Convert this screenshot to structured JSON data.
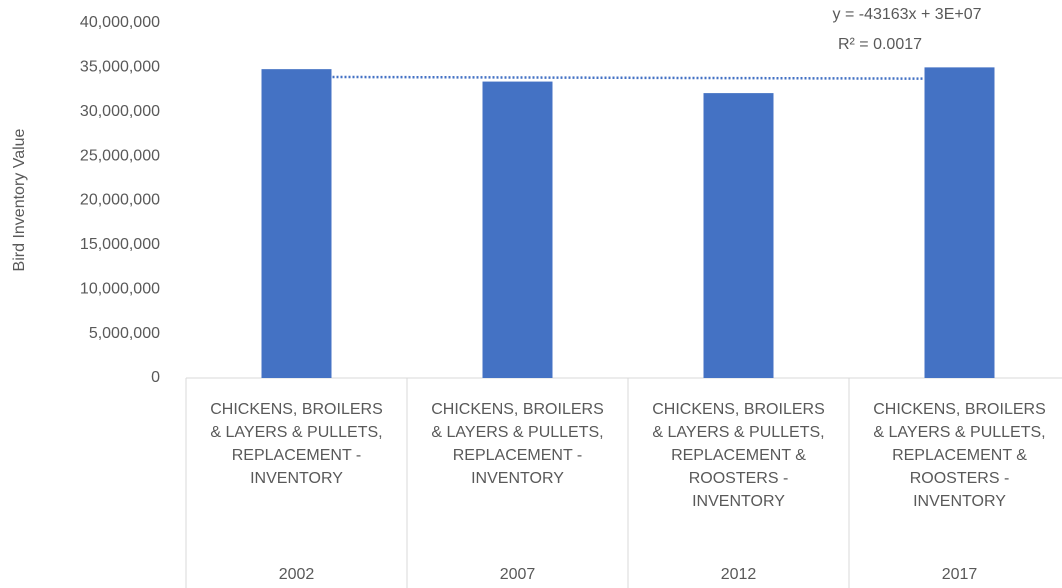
{
  "chart_data": {
    "type": "bar",
    "y_axis_label": "Bird Inventory Value",
    "categories": [
      "2002",
      "2007",
      "2012",
      "2017"
    ],
    "category_labels": [
      [
        "CHICKENS, BROILERS",
        "& LAYERS & PULLETS,",
        "REPLACEMENT -",
        "INVENTORY"
      ],
      [
        "CHICKENS, BROILERS",
        "& LAYERS & PULLETS,",
        "REPLACEMENT -",
        "INVENTORY"
      ],
      [
        "CHICKENS, BROILERS",
        "& LAYERS & PULLETS,",
        "REPLACEMENT &",
        "ROOSTERS -",
        "INVENTORY"
      ],
      [
        "CHICKENS, BROILERS",
        "& LAYERS & PULLETS,",
        "REPLACEMENT &",
        "ROOSTERS -",
        "INVENTORY"
      ]
    ],
    "values": [
      34800000,
      33400000,
      32100000,
      35000000
    ],
    "color": "#4472c4",
    "trendline": {
      "type": "linear",
      "color": "#4472c4",
      "equation": "y = -43163x + 3E+07",
      "r_squared": "R² = 0.0017"
    },
    "ylim": [
      0,
      40000000
    ],
    "yticks": [
      0,
      {
        "value": 5000000,
        "label": "5,000,000"
      },
      {
        "value": 10000000,
        "label": "10,000,000"
      },
      {
        "value": 15000000,
        "label": "15,000,000"
      },
      {
        "value": 20000000,
        "label": "20,000,000"
      },
      {
        "value": 25000000,
        "label": "25,000,000"
      },
      {
        "value": 30000000,
        "label": "30,000,000"
      },
      {
        "value": 35000000,
        "label": "35,000,000"
      },
      {
        "value": 40000000,
        "label": "40,000,000"
      }
    ],
    "grid": false
  }
}
